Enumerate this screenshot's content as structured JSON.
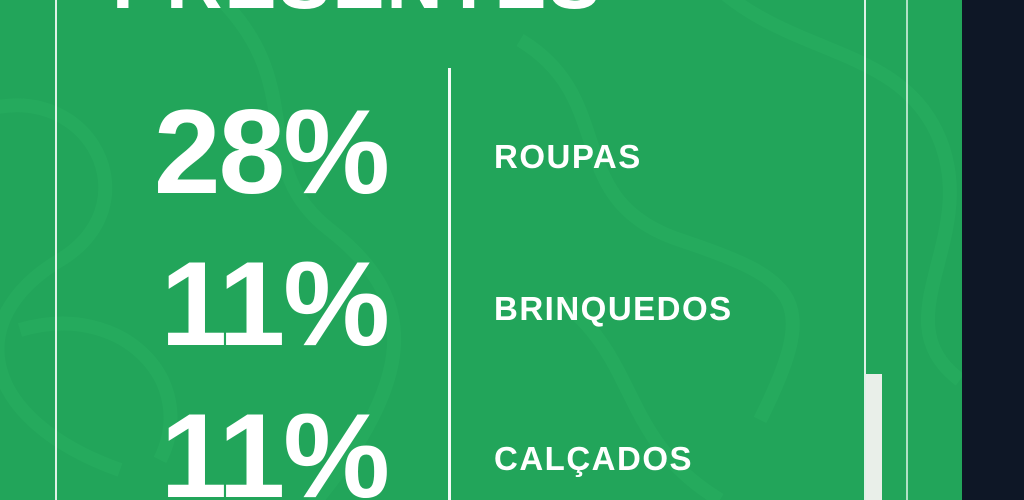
{
  "title": "PRESENTES",
  "stats": [
    {
      "percent": "28%",
      "label": "ROUPAS"
    },
    {
      "percent": "11%",
      "label": "BRINQUEDOS"
    },
    {
      "percent": "11%",
      "label": "CALÇADOS"
    }
  ],
  "colors": {
    "background": "#22a55a",
    "text": "#ffffff",
    "side": "#0e1726"
  }
}
